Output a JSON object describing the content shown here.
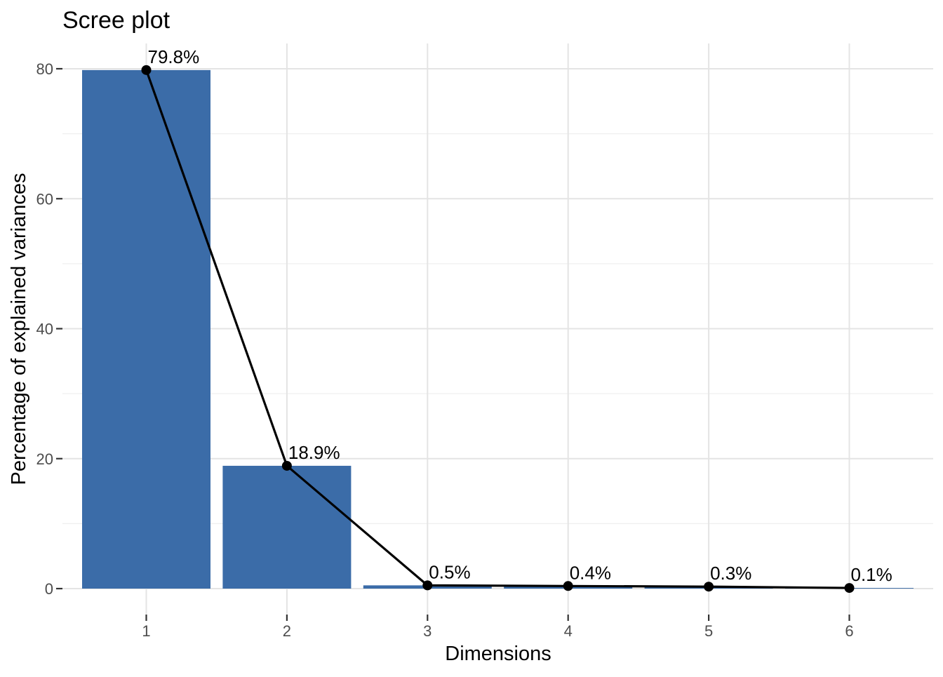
{
  "title": "Scree plot",
  "chart_data": {
    "type": "bar",
    "overlay": "line-with-points",
    "title": "Scree plot",
    "xlabel": "Dimensions",
    "ylabel": "Percentage of explained variances",
    "categories": [
      "1",
      "2",
      "3",
      "4",
      "5",
      "6"
    ],
    "values": [
      79.8,
      18.9,
      0.5,
      0.4,
      0.3,
      0.1
    ],
    "point_labels": [
      "79.8%",
      "18.9%",
      "0.5%",
      "0.4%",
      "0.3%",
      "0.1%"
    ],
    "ylim": [
      0,
      83.8
    ],
    "yticks": [
      0,
      20,
      40,
      60,
      80
    ],
    "yticks_minor": [
      10,
      30,
      50,
      70
    ],
    "grid": "major-and-minor-horizontal, major-vertical-at-categories",
    "legend": "none",
    "colors": {
      "bar_fill": "#3B6CA8",
      "line": "#000000",
      "point": "#000000",
      "grid_major": "#E4E4E4",
      "grid_minor": "#EFEFEF",
      "axis_tick": "#333333",
      "tick_label": "#4D4D4D",
      "text": "#000000",
      "background": "#FFFFFF"
    }
  }
}
